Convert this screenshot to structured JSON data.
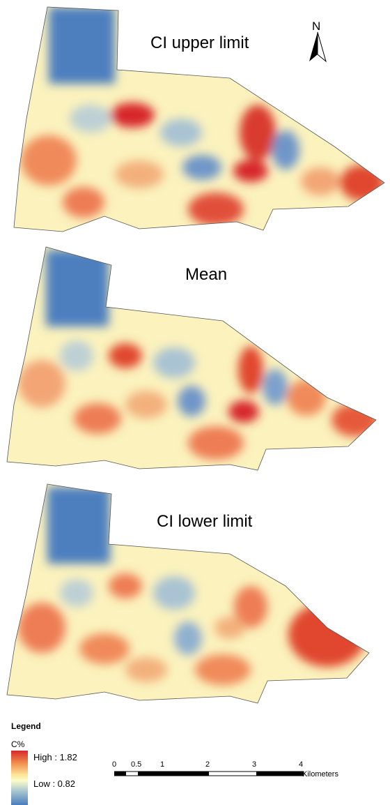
{
  "panels": [
    {
      "title": "CI upper limit"
    },
    {
      "title": "Mean"
    },
    {
      "title": "CI lower limit"
    }
  ],
  "north_arrow": {
    "label": "N"
  },
  "legend": {
    "title": "Legend",
    "field": "C%",
    "high_label": "High : 1.82",
    "low_label": "Low : 0.82",
    "colors": {
      "high": "#d7262b",
      "mid": "#fbfcc8",
      "low": "#4a7dbf"
    }
  },
  "scale_bar": {
    "ticks": [
      "0",
      "0.5",
      "1",
      "2",
      "3",
      "4"
    ],
    "unit": "Kilometers"
  }
}
